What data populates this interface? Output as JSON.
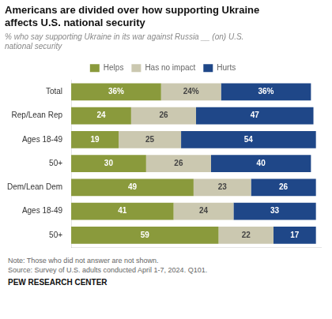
{
  "chart_data": {
    "type": "bar",
    "orientation": "horizontal",
    "stacked": true,
    "data_labels": true,
    "tick_labels": "y",
    "grid": false,
    "legend": "top",
    "title": "Americans are divided over how supporting Ukraine\naffects U.S. national security",
    "subtitle": "% who say supporting Ukraine in its war against Russia __ (on) U.S.\nnational security",
    "annotations": [
      "Note: Those who did not answer are not shown.",
      "Source: Survey of U.S. adults conducted April 1-7, 2024. Q101.",
      "PEW RESEARCH CENTER"
    ],
    "categories": [
      "Total",
      "Rep/Lean Rep",
      "Ages 18-49",
      "50+",
      "Dem/Lean Dem",
      "Ages 18-49",
      "50+"
    ],
    "xlim": [
      0,
      100
    ],
    "series": [
      {
        "name": "Helps",
        "color": "#8a9a3c",
        "values": [
          36,
          24,
          19,
          30,
          49,
          41,
          59
        ],
        "value_labels": [
          "36%",
          "24",
          "19",
          "30",
          "49",
          "41",
          "59"
        ]
      },
      {
        "name": "Has no impact",
        "color": "#cbc8b0",
        "values": [
          24,
          26,
          25,
          26,
          23,
          24,
          22
        ],
        "value_labels": [
          "24%",
          "26",
          "25",
          "26",
          "23",
          "24",
          "22"
        ]
      },
      {
        "name": "Hurts",
        "color": "#1f4788",
        "values": [
          36,
          47,
          54,
          40,
          26,
          33,
          17
        ],
        "value_labels": [
          "36%",
          "47",
          "54",
          "40",
          "26",
          "33",
          "17"
        ]
      }
    ]
  }
}
